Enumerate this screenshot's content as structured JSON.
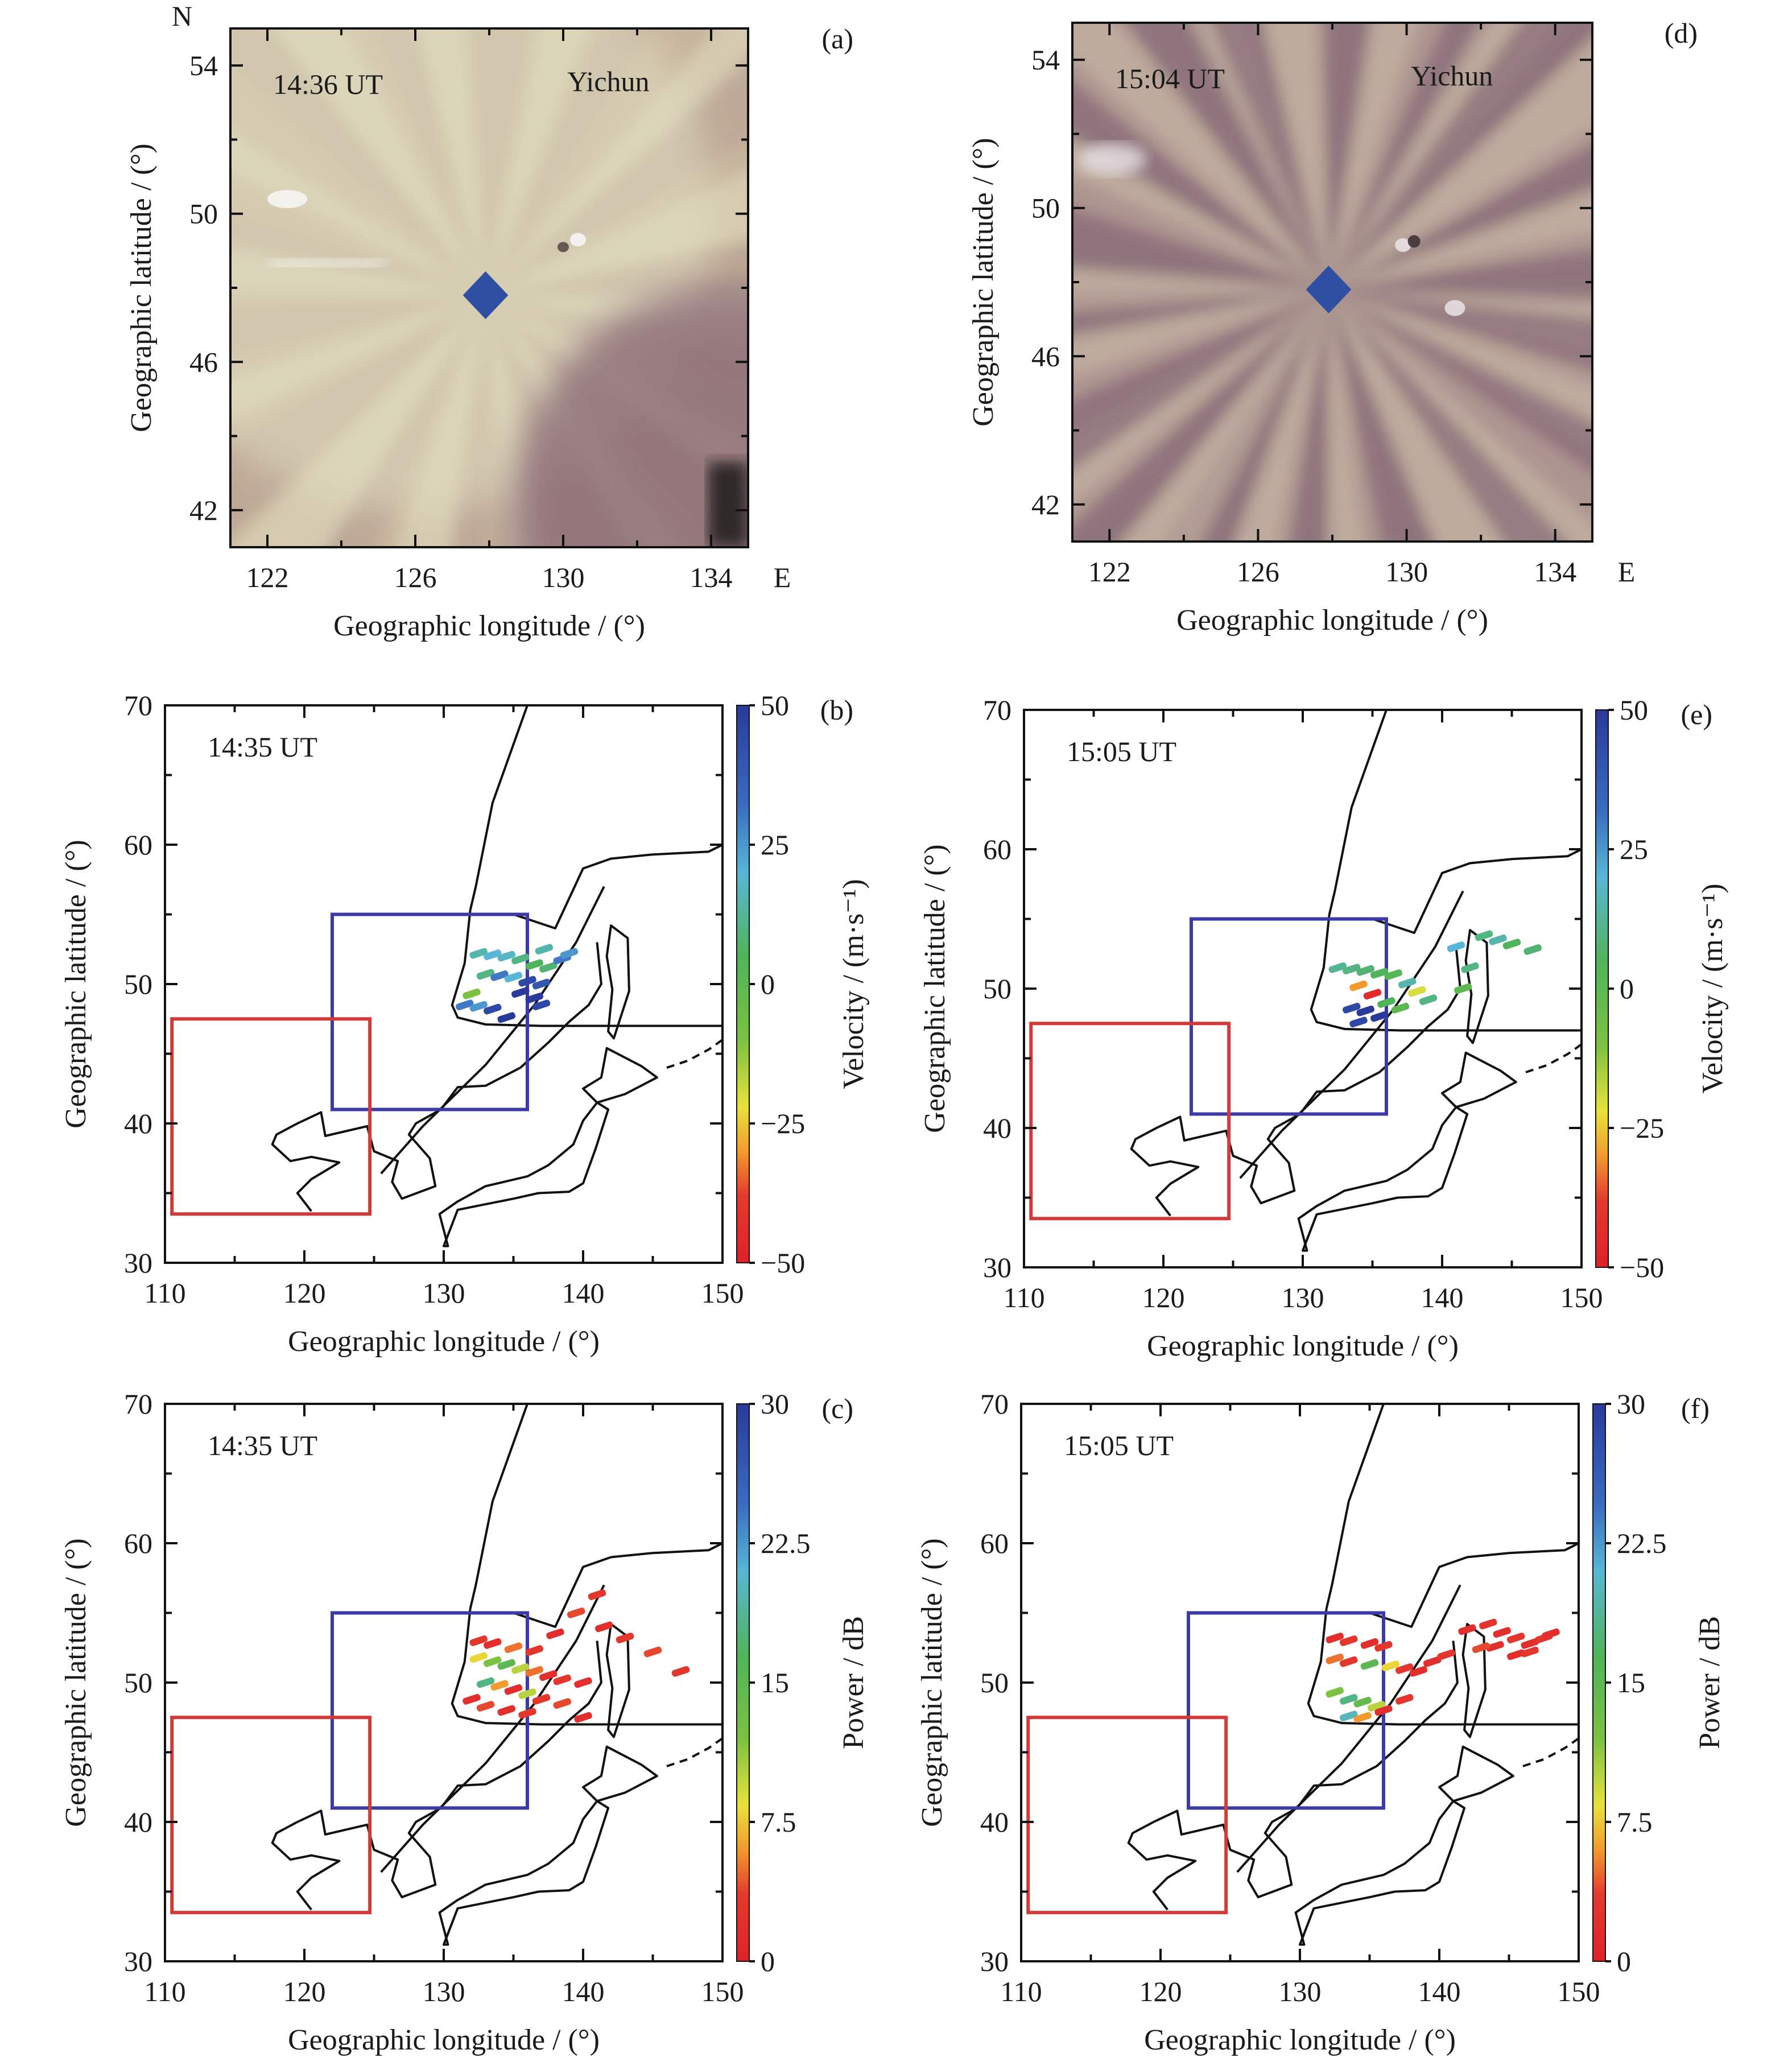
{
  "panels": [
    {
      "id": "a",
      "kind": "airglow",
      "label": "(a)",
      "time": "14:36 UT",
      "station": "Yichun",
      "xlabel": "Geographic longitude / (°)",
      "ylabel": "Geographic latitude / (°)",
      "north": "N",
      "east": "E",
      "xlim": [
        121,
        135
      ],
      "ylim": [
        41,
        55
      ],
      "xticks": [
        122,
        126,
        130,
        134
      ],
      "yticks": [
        42,
        46,
        50,
        54
      ],
      "marker": {
        "lon": 127.9,
        "lat": 47.8
      },
      "palette": {
        "light": "#e6e3c4",
        "dark": "#7e5a6a",
        "mid": "#c9b59c"
      }
    },
    {
      "id": "d",
      "kind": "airglow",
      "label": "(d)",
      "time": "15:04 UT",
      "station": "Yichun",
      "xlabel": "Geographic longitude / (°)",
      "ylabel": "Geographic latitude / (°)",
      "east": "E",
      "xlim": [
        121,
        135
      ],
      "ylim": [
        41,
        55
      ],
      "xticks": [
        122,
        126,
        130,
        134
      ],
      "yticks": [
        42,
        46,
        50,
        54
      ],
      "marker": {
        "lon": 127.9,
        "lat": 47.8
      },
      "palette": {
        "light": "#d8ccab",
        "dark": "#6e4f62",
        "mid": "#b39a8f"
      }
    },
    {
      "id": "b",
      "kind": "radar",
      "label": "(b)",
      "time": "14:35 UT",
      "xlabel": "Geographic longitude / (°)",
      "ylabel": "Geographic latitude / (°)",
      "xlim": [
        110,
        150
      ],
      "ylim": [
        30,
        70
      ],
      "xticks": [
        110,
        120,
        130,
        140,
        150
      ],
      "yticks": [
        30,
        40,
        50,
        60,
        70
      ],
      "colorbar": {
        "label": "Velocity / (m·s⁻¹)",
        "ticks": [
          "50",
          "25",
          "0",
          "−25",
          "−50"
        ],
        "min": -50,
        "max": 50
      }
    },
    {
      "id": "e",
      "kind": "radar",
      "label": "(e)",
      "time": "15:05 UT",
      "xlabel": "Geographic longitude / (°)",
      "ylabel": "Geographic latitude / (°)",
      "xlim": [
        110,
        150
      ],
      "ylim": [
        30,
        70
      ],
      "xticks": [
        110,
        120,
        130,
        140,
        150
      ],
      "yticks": [
        30,
        40,
        50,
        60,
        70
      ],
      "colorbar": {
        "label": "Velocity / (m·s⁻¹)",
        "ticks": [
          "50",
          "25",
          "0",
          "−25",
          "−50"
        ],
        "min": -50,
        "max": 50
      }
    },
    {
      "id": "c",
      "kind": "radar",
      "label": "(c)",
      "time": "14:35 UT",
      "xlabel": "Geographic longitude / (°)",
      "ylabel": "Geographic latitude / (°)",
      "xlim": [
        110,
        150
      ],
      "ylim": [
        30,
        70
      ],
      "xticks": [
        110,
        120,
        130,
        140,
        150
      ],
      "yticks": [
        30,
        40,
        50,
        60,
        70
      ],
      "colorbar": {
        "label": "Power / dB",
        "ticks": [
          "30",
          "22.5",
          "15",
          "7.5",
          "0"
        ],
        "min": 0,
        "max": 30
      }
    },
    {
      "id": "f",
      "kind": "radar",
      "label": "(f)",
      "time": "15:05 UT",
      "xlabel": "Geographic longitude / (°)",
      "ylabel": "Geographic latitude / (°)",
      "xlim": [
        110,
        150
      ],
      "ylim": [
        30,
        70
      ],
      "xticks": [
        110,
        120,
        130,
        140,
        150
      ],
      "yticks": [
        30,
        40,
        50,
        60,
        70
      ],
      "colorbar": {
        "label": "Power / dB",
        "ticks": [
          "30",
          "22.5",
          "15",
          "7.5",
          "0"
        ],
        "min": 0,
        "max": 30
      }
    }
  ],
  "map": {
    "blue_box": {
      "lon": [
        122,
        136
      ],
      "lat": [
        41,
        55
      ]
    },
    "red_box": {
      "lon": [
        110.5,
        124.7
      ],
      "lat": [
        33.5,
        47.5
      ]
    },
    "fov_line": [
      [
        136,
        70
      ],
      [
        133.5,
        63
      ],
      [
        132.3,
        57
      ],
      [
        131.9,
        55.3
      ]
    ],
    "fov_lower": [
      [
        131.9,
        55.3
      ],
      [
        131.5,
        51.5
      ],
      [
        130.6,
        48.5
      ],
      [
        131,
        47.6
      ],
      [
        133,
        47.1
      ],
      [
        137,
        47
      ],
      [
        150,
        47
      ]
    ],
    "coastline": [
      [
        135,
        55
      ],
      [
        138,
        54
      ],
      [
        140,
        58.3
      ],
      [
        142,
        59
      ],
      [
        145,
        59.3
      ],
      [
        149,
        59.5
      ],
      [
        150,
        60
      ]
    ],
    "coast_mainland": [
      [
        141,
        53
      ],
      [
        141.3,
        50
      ],
      [
        140.4,
        48.5
      ],
      [
        139,
        47.3
      ],
      [
        137.5,
        45.8
      ],
      [
        135.5,
        44
      ],
      [
        133,
        42.7
      ],
      [
        131,
        42.6
      ],
      [
        129.8,
        41
      ],
      [
        128,
        40
      ],
      [
        127.5,
        39.2
      ],
      [
        129,
        37.5
      ],
      [
        129.4,
        35.5
      ],
      [
        127,
        34.6
      ],
      [
        126.3,
        35.8
      ],
      [
        126.7,
        37.3
      ],
      [
        125,
        38
      ],
      [
        124.5,
        39.8
      ],
      [
        121.5,
        39.1
      ],
      [
        121.2,
        40.8
      ],
      [
        119.5,
        40
      ],
      [
        118,
        39.2
      ],
      [
        117.7,
        38.5
      ],
      [
        119,
        37.3
      ],
      [
        120.5,
        37.6
      ],
      [
        122.5,
        37.2
      ],
      [
        120.5,
        36
      ],
      [
        119.5,
        35
      ],
      [
        120.5,
        33.7
      ]
    ],
    "fov_arc": [
      [
        141.5,
        57
      ],
      [
        139.5,
        53
      ],
      [
        136.5,
        48.5
      ],
      [
        133,
        44.2
      ],
      [
        128.5,
        39.8
      ],
      [
        125.5,
        36.4
      ]
    ],
    "japan": [
      [
        130,
        31.2
      ],
      [
        131,
        33.8
      ],
      [
        133,
        34.2
      ],
      [
        135,
        34.6
      ],
      [
        136.8,
        35
      ],
      [
        139,
        35.1
      ],
      [
        140,
        35.7
      ],
      [
        140.9,
        38.2
      ],
      [
        141.8,
        41
      ],
      [
        141,
        41.5
      ],
      [
        140,
        40.2
      ],
      [
        139.3,
        38.5
      ],
      [
        137.5,
        37
      ],
      [
        136,
        36.2
      ],
      [
        133,
        35.5
      ],
      [
        131,
        34.4
      ],
      [
        129.7,
        33.5
      ],
      [
        130.3,
        31.2
      ]
    ],
    "hokkaido": [
      [
        141,
        41.5
      ],
      [
        143,
        42.1
      ],
      [
        145.3,
        43.3
      ],
      [
        144.2,
        44.1
      ],
      [
        141.7,
        45.4
      ],
      [
        141.3,
        43.3
      ],
      [
        140,
        42.5
      ]
    ],
    "sakhalin": [
      [
        142,
        54.2
      ],
      [
        143.2,
        53.3
      ],
      [
        143.3,
        49.5
      ],
      [
        142.2,
        46.1
      ],
      [
        141.8,
        46.6
      ],
      [
        142.1,
        49.6
      ],
      [
        141.7,
        52
      ]
    ],
    "kuril": [
      [
        146,
        44
      ],
      [
        147.5,
        44.5
      ],
      [
        149,
        45.3
      ],
      [
        150,
        46
      ]
    ]
  },
  "chart_data": [
    {
      "type": "scatter",
      "title": "(b) 14:35 UT",
      "xlabel": "Geographic longitude / (°)",
      "ylabel": "Geographic latitude / (°)",
      "xlim": [
        110,
        150
      ],
      "ylim": [
        30,
        70
      ],
      "colorbar": "Velocity / (m·s⁻¹)",
      "points": [
        [
          132.5,
          52.2,
          15
        ],
        [
          133.5,
          52.1,
          20
        ],
        [
          134.5,
          52,
          18
        ],
        [
          135.5,
          51.8,
          10
        ],
        [
          136.5,
          51.4,
          5
        ],
        [
          137.5,
          51.2,
          8
        ],
        [
          138.5,
          51.8,
          30
        ],
        [
          139,
          52.2,
          25
        ],
        [
          133,
          50.7,
          10
        ],
        [
          134,
          50.6,
          30
        ],
        [
          135,
          50.5,
          20
        ],
        [
          136,
          50.2,
          45
        ],
        [
          137,
          50,
          40
        ],
        [
          135.5,
          49.4,
          50
        ],
        [
          136.5,
          49,
          50
        ],
        [
          137,
          48.5,
          45
        ],
        [
          131.5,
          48.5,
          30
        ],
        [
          132.5,
          48.4,
          25
        ],
        [
          133.5,
          48.2,
          45
        ],
        [
          134.5,
          47.6,
          50
        ],
        [
          132,
          49.3,
          -10
        ],
        [
          137.2,
          52.5,
          15
        ]
      ]
    },
    {
      "type": "scatter",
      "title": "(e) 15:05 UT",
      "xlabel": "Geographic longitude / (°)",
      "ylabel": "Geographic latitude / (°)",
      "xlim": [
        110,
        150
      ],
      "ylim": [
        30,
        70
      ],
      "colorbar": "Velocity / (m·s⁻¹)",
      "points": [
        [
          132.5,
          51.5,
          12
        ],
        [
          133.5,
          51.4,
          10
        ],
        [
          134.5,
          51.3,
          8
        ],
        [
          135.5,
          51.1,
          5
        ],
        [
          136.5,
          51,
          2
        ],
        [
          137.5,
          50.4,
          15
        ],
        [
          138.2,
          49.8,
          -20
        ],
        [
          139,
          49.2,
          10
        ],
        [
          134,
          50.2,
          -30
        ],
        [
          135,
          49.6,
          -45
        ],
        [
          136,
          49,
          5
        ],
        [
          137,
          48.6,
          0
        ],
        [
          133.5,
          48.6,
          45
        ],
        [
          134.5,
          48.4,
          50
        ],
        [
          135.5,
          48,
          50
        ],
        [
          134,
          47.6,
          45
        ],
        [
          143,
          53.8,
          10
        ],
        [
          144,
          53.5,
          15
        ],
        [
          145,
          53.2,
          5
        ],
        [
          146.5,
          52.8,
          8
        ],
        [
          141,
          53,
          20
        ],
        [
          142,
          51.5,
          10
        ],
        [
          141.5,
          50,
          0
        ]
      ]
    },
    {
      "type": "scatter",
      "title": "(c) 14:35 UT",
      "xlabel": "Geographic longitude / (°)",
      "ylabel": "Geographic latitude / (°)",
      "xlim": [
        110,
        150
      ],
      "ylim": [
        30,
        70
      ],
      "colorbar": "Power / dB",
      "points": [
        [
          132.5,
          53,
          3
        ],
        [
          133.5,
          52.8,
          2
        ],
        [
          135,
          52.5,
          5
        ],
        [
          136.5,
          52.3,
          3
        ],
        [
          138,
          53.5,
          2
        ],
        [
          139.5,
          55,
          4
        ],
        [
          141,
          56.3,
          3
        ],
        [
          141.5,
          54,
          2
        ],
        [
          143,
          53.2,
          3
        ],
        [
          145,
          52.2,
          4
        ],
        [
          147,
          50.8,
          3
        ],
        [
          132.5,
          51.8,
          8
        ],
        [
          133.5,
          51.5,
          12
        ],
        [
          134.5,
          51.3,
          15
        ],
        [
          135.5,
          51,
          10
        ],
        [
          136.5,
          50.8,
          5
        ],
        [
          137.5,
          50.5,
          2
        ],
        [
          138.5,
          50.2,
          3
        ],
        [
          140,
          50,
          2
        ],
        [
          133,
          50,
          18
        ],
        [
          134,
          49.8,
          6
        ],
        [
          135,
          49.5,
          2
        ],
        [
          136,
          49.2,
          10
        ],
        [
          137,
          48.8,
          3
        ],
        [
          132,
          48.8,
          2
        ],
        [
          133,
          48.3,
          4
        ],
        [
          134.5,
          48,
          2
        ],
        [
          136,
          47.8,
          3
        ],
        [
          138.5,
          48.5,
          4
        ],
        [
          140,
          47.5,
          2
        ]
      ]
    },
    {
      "type": "scatter",
      "title": "(f) 15:05 UT",
      "xlabel": "Geographic longitude / (°)",
      "ylabel": "Geographic latitude / (°)",
      "xlim": [
        110,
        150
      ],
      "ylim": [
        30,
        70
      ],
      "colorbar": "Power / dB",
      "points": [
        [
          132.5,
          53.2,
          2
        ],
        [
          133.5,
          53,
          3
        ],
        [
          135,
          52.8,
          2
        ],
        [
          136,
          52.6,
          3
        ],
        [
          132.5,
          51.7,
          5
        ],
        [
          133.5,
          51.5,
          3
        ],
        [
          135,
          51.3,
          15
        ],
        [
          136.5,
          51.2,
          8
        ],
        [
          137.5,
          51,
          3
        ],
        [
          138.5,
          50.8,
          2
        ],
        [
          139.5,
          51.5,
          2
        ],
        [
          140.5,
          52,
          3
        ],
        [
          132.5,
          49.3,
          12
        ],
        [
          133.5,
          48.8,
          18
        ],
        [
          134.5,
          48.6,
          14
        ],
        [
          135.5,
          48.3,
          10
        ],
        [
          133.5,
          47.6,
          20
        ],
        [
          134.5,
          47.5,
          6
        ],
        [
          136,
          48,
          2
        ],
        [
          137.5,
          48.8,
          3
        ],
        [
          142,
          53.8,
          2
        ],
        [
          143.5,
          54.2,
          3
        ],
        [
          144.5,
          53.6,
          2
        ],
        [
          145.5,
          53.2,
          3
        ],
        [
          146.5,
          52.8,
          2
        ],
        [
          147.5,
          53.2,
          3
        ],
        [
          144,
          52.6,
          2
        ],
        [
          145.5,
          52,
          2
        ],
        [
          146.5,
          52.2,
          3
        ],
        [
          148,
          53.5,
          2
        ],
        [
          143,
          52.5,
          4
        ]
      ]
    }
  ]
}
